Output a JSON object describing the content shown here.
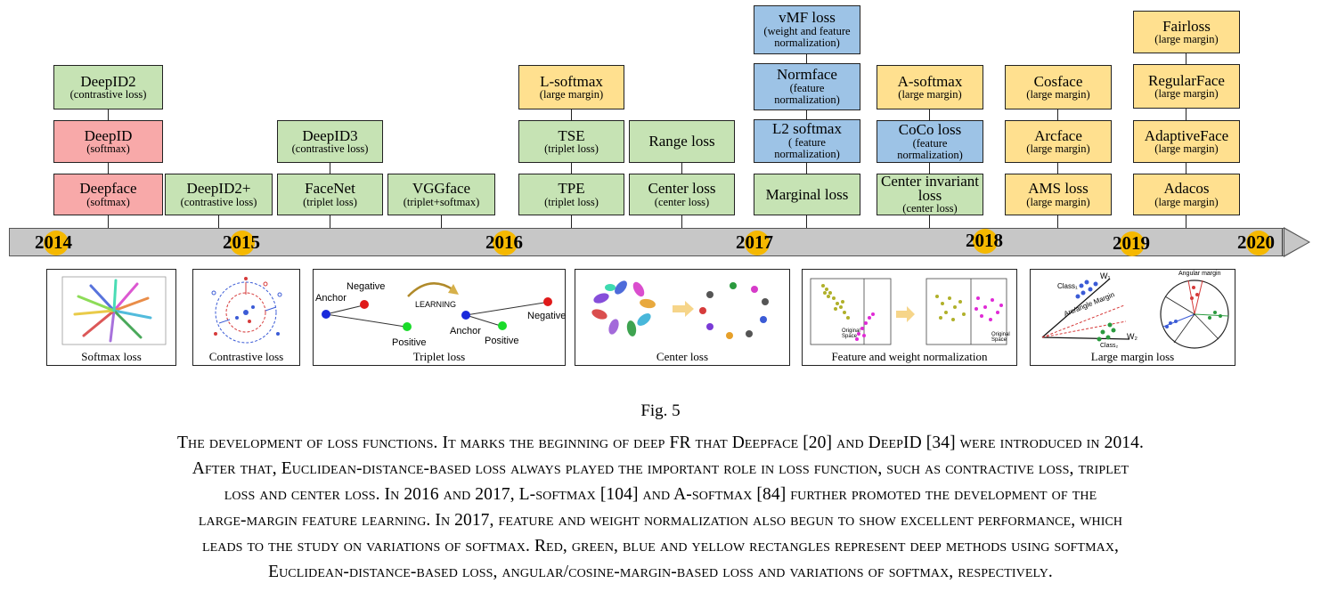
{
  "boxes": {
    "deepid2": {
      "title": "DeepID2",
      "sub": "(contrastive loss)"
    },
    "deepid": {
      "title": "DeepID",
      "sub": "(softmax)"
    },
    "deepface": {
      "title": "Deepface",
      "sub": "(softmax)"
    },
    "deepid2plus": {
      "title": "DeepID2+",
      "sub": "(contrastive loss)"
    },
    "deepid3": {
      "title": "DeepID3",
      "sub": "(contrastive loss)"
    },
    "facenet": {
      "title": "FaceNet",
      "sub": "(triplet loss)"
    },
    "vggface": {
      "title": "VGGface",
      "sub": "(triplet+softmax)"
    },
    "lsoftmax": {
      "title": "L-softmax",
      "sub": "(large margin)"
    },
    "tse": {
      "title": "TSE",
      "sub": "(triplet loss)"
    },
    "tpe": {
      "title": "TPE",
      "sub": "(triplet loss)"
    },
    "rangeloss": {
      "title": "Range loss"
    },
    "centerloss": {
      "title": "Center loss",
      "sub": "(center loss)"
    },
    "vmf": {
      "title": "vMF loss",
      "sub": "(weight and feature normalization)"
    },
    "normface": {
      "title": "Normface",
      "sub": "(feature normalization)"
    },
    "l2softmax": {
      "title": "L2 softmax",
      "sub": "( feature normalization)"
    },
    "marginal": {
      "title": "Marginal loss"
    },
    "asoftmax": {
      "title": "A-softmax",
      "sub": "(large margin)"
    },
    "coco": {
      "title": "CoCo loss",
      "sub": "(feature normalization)"
    },
    "centerinvariant": {
      "title": "Center invariant loss",
      "sub": "(center loss)"
    },
    "cosface": {
      "title": "Cosface",
      "sub": "(large margin)"
    },
    "arcface": {
      "title": "Arcface",
      "sub": "(large margin)"
    },
    "ams": {
      "title": "AMS loss",
      "sub": "(large margin)"
    },
    "fairloss": {
      "title": "Fairloss",
      "sub": "(large margin)"
    },
    "regularface": {
      "title": "RegularFace",
      "sub": "(large margin)"
    },
    "adaptiveface": {
      "title": "AdaptiveFace",
      "sub": "(large margin)"
    },
    "adacos": {
      "title": "Adacos",
      "sub": "(large margin)"
    }
  },
  "years": [
    "2014",
    "2015",
    "2016",
    "2017",
    "2018",
    "2019",
    "2020"
  ],
  "panels": {
    "softmax": "Softmax loss",
    "contrastive": "Contrastive loss",
    "triplet": "Triplet loss",
    "center": "Center loss",
    "normalization": "Feature and weight normalization",
    "largemargin": "Large margin loss"
  },
  "triplet_labels": {
    "anchor": "Anchor",
    "negative": "Negative",
    "positive": "Positive",
    "learning": "LEARNING"
  },
  "normalization_labels": {
    "space": "Original Space"
  },
  "largemargin_labels": {
    "w1": "W₁",
    "w2": "W₂",
    "class1": "Class₁",
    "class2": "Class₂",
    "margin": "Arc/angle Margin",
    "angular": "Angular margin"
  },
  "figure_label": "Fig. 5",
  "caption_lines": [
    "The development of loss functions. It marks the beginning of deep FR that Deepface [20] and DeepID [34] were introduced in 2014.",
    "After that, Euclidean-distance-based loss always played the important role in loss function, such as contractive loss, triplet",
    "loss and center loss. In 2016 and 2017, L-softmax [104] and A-softmax [84] further promoted the development of the",
    "large-margin feature learning. In 2017, feature and weight normalization also begun to show excellent performance, which",
    "leads to the study on variations of softmax. Red, green, blue and yellow rectangles represent deep methods using softmax,",
    "Euclidean-distance-based loss, angular/cosine-margin-based loss and variations of softmax, respectively."
  ],
  "colors": {
    "red": "#f8a9a9",
    "green": "#c6e3b4",
    "blue": "#9dc3e6",
    "yellow": "#ffe08f",
    "year_dot": "#f5b800"
  }
}
